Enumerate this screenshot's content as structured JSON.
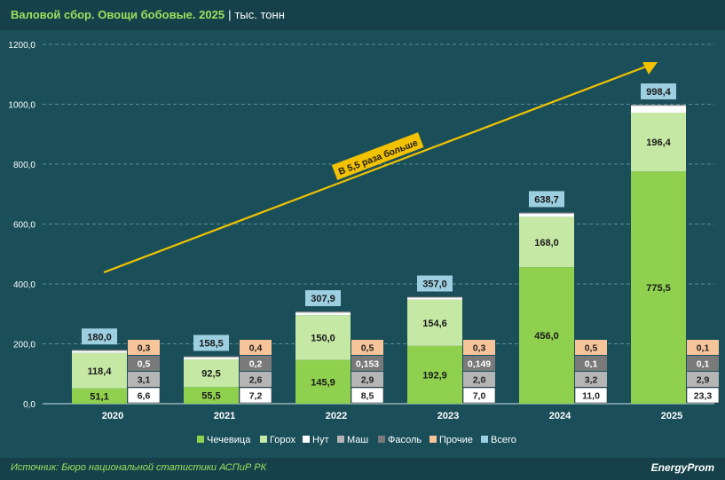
{
  "header": {
    "title": "Валовой сбор. Овощи бобовые. 2025",
    "separator": "|",
    "unit": "тыс. тонн"
  },
  "footer": {
    "source": "Источник: Бюро национальной статистики АСПиР РК",
    "brand": "EnergyProm"
  },
  "annotation": "В 5,5 раза больше",
  "colors": {
    "background": "#1a4f5a",
    "chechevitsa": "#8fd14f",
    "gorokh": "#c5e8a4",
    "nut": "#ffffff",
    "mash": "#b5b5b5",
    "fasol": "#7a7a7a",
    "prochie": "#f7c49a",
    "vsego": "#9ccfe0",
    "arrow": "#f2c200",
    "text_light": "#ffffff",
    "title_green": "#9be15d"
  },
  "chart_data": {
    "type": "bar",
    "categories": [
      "2020",
      "2021",
      "2022",
      "2023",
      "2024",
      "2025"
    ],
    "ylim": [
      0,
      1200
    ],
    "yticks": [
      "0,0",
      "200,0",
      "400,0",
      "600,0",
      "800,0",
      "1000,0",
      "1200,0"
    ],
    "grid": true,
    "legend_position": "bottom",
    "series": [
      {
        "name": "Чечевица",
        "values": [
          51.1,
          55.5,
          145.9,
          192.9,
          456.0,
          775.5
        ],
        "labels": [
          "51,1",
          "55,5",
          "145,9",
          "192,9",
          "456,0",
          "775,5"
        ]
      },
      {
        "name": "Горох",
        "values": [
          118.4,
          92.5,
          150.0,
          154.6,
          168.0,
          196.4
        ],
        "labels": [
          "118,4",
          "92,5",
          "150,0",
          "154,6",
          "168,0",
          "196,4"
        ]
      },
      {
        "name": "Нут",
        "values": [
          6.6,
          7.2,
          8.5,
          7.0,
          11.0,
          23.3
        ],
        "labels": [
          "6,6",
          "7,2",
          "8,5",
          "7,0",
          "11,0",
          "23,3"
        ]
      },
      {
        "name": "Маш",
        "values": [
          3.1,
          2.6,
          2.9,
          2.0,
          3.2,
          2.9
        ],
        "labels": [
          "3,1",
          "2,6",
          "2,9",
          "2,0",
          "3,2",
          "2,9"
        ]
      },
      {
        "name": "Фасоль",
        "values": [
          0.5,
          0.2,
          0.153,
          0.149,
          0.1,
          0.1
        ],
        "labels": [
          "0,5",
          "0,2",
          "0,153",
          "0,149",
          "0,1",
          "0,1"
        ]
      },
      {
        "name": "Прочие",
        "values": [
          0.3,
          0.4,
          0.5,
          0.3,
          0.5,
          0.1
        ],
        "labels": [
          "0,3",
          "0,4",
          "0,5",
          "0,3",
          "0,5",
          "0,1"
        ]
      }
    ],
    "totals": {
      "name": "Всего",
      "values": [
        180.0,
        158.5,
        307.9,
        357.0,
        638.7,
        998.4
      ],
      "labels": [
        "180,0",
        "158,5",
        "307,9",
        "357,0",
        "638,7",
        "998,4"
      ]
    },
    "legend": [
      "Чечевица",
      "Горох",
      "Нут",
      "Маш",
      "Фасоль",
      "Прочие",
      "Всего"
    ]
  }
}
